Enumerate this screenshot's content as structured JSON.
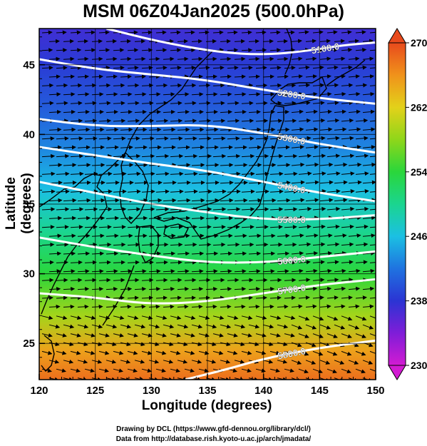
{
  "title": "MSM 06Z04Jan2025 (500.0hPa)",
  "xlabel": "Longitude (degrees)",
  "ylabel": "Latitude  (degrees)",
  "credits": {
    "line1": "Drawing by DCL (https://www.gfd-dennou.org/library/dcl/)",
    "line2": "Data from http://database.rish.kyoto-u.ac.jp/arch/jmadata/"
  },
  "chart_data": {
    "type": "map",
    "xlim": [
      120,
      150
    ],
    "ylim": [
      22.4,
      47.6
    ],
    "xticks": [
      120,
      125,
      130,
      135,
      140,
      145,
      150
    ],
    "yticks": [
      25,
      30,
      35,
      40,
      45
    ],
    "colorbar": {
      "min": 230,
      "max": 270,
      "ticks": [
        230,
        238,
        246,
        254,
        262,
        270
      ],
      "colors": [
        "#d21bd2",
        "#7f1dd8",
        "#2b34d3",
        "#1f73e0",
        "#1bc0e3",
        "#1bd58f",
        "#2ad63b",
        "#8fd61a",
        "#e3d11a",
        "#f0921b",
        "#e84a1c"
      ]
    },
    "temperature_field": [
      {
        "lat": 47.6,
        "temp": 237
      },
      {
        "lat": 45,
        "temp": 238.5
      },
      {
        "lat": 42,
        "temp": 240.5
      },
      {
        "lat": 39,
        "temp": 243
      },
      {
        "lat": 36,
        "temp": 246
      },
      {
        "lat": 33,
        "temp": 250
      },
      {
        "lat": 30,
        "temp": 254
      },
      {
        "lat": 27,
        "temp": 259
      },
      {
        "lat": 24.5,
        "temp": 265
      },
      {
        "lat": 22.4,
        "temp": 268
      }
    ],
    "contours": [
      {
        "label": "5100.0",
        "points": [
          [
            126,
            47.6
          ],
          [
            131,
            46.6
          ],
          [
            136,
            45.9
          ],
          [
            140,
            45.7
          ],
          [
            144,
            46.0
          ],
          [
            147,
            46.4
          ],
          [
            150,
            46.6
          ]
        ]
      },
      {
        "label": "5200.0",
        "points": [
          [
            120,
            45.4
          ],
          [
            125,
            44.7
          ],
          [
            130,
            44.3
          ],
          [
            135,
            43.9
          ],
          [
            140,
            43.2
          ],
          [
            145,
            42.6
          ],
          [
            150,
            42.2
          ]
        ]
      },
      {
        "label": "5300.0",
        "points": [
          [
            120,
            41.1
          ],
          [
            125,
            40.6
          ],
          [
            130,
            40.6
          ],
          [
            135,
            40.7
          ],
          [
            140,
            40.1
          ],
          [
            145,
            39.3
          ],
          [
            150,
            38.7
          ]
        ]
      },
      {
        "label": "5400.0",
        "points": [
          [
            120,
            39.1
          ],
          [
            125,
            38.5
          ],
          [
            130,
            37.9
          ],
          [
            135,
            37.4
          ],
          [
            140,
            36.6
          ],
          [
            145,
            35.8
          ],
          [
            150,
            35.2
          ]
        ]
      },
      {
        "label": "5500.0",
        "points": [
          [
            120,
            36.6
          ],
          [
            125,
            35.8
          ],
          [
            130,
            35.0
          ],
          [
            135,
            34.4
          ],
          [
            140,
            33.9
          ],
          [
            145,
            33.9
          ],
          [
            150,
            34.2
          ]
        ]
      },
      {
        "label": "5600.0",
        "points": [
          [
            120,
            32.6
          ],
          [
            125,
            31.9
          ],
          [
            130,
            31.3
          ],
          [
            135,
            30.8
          ],
          [
            140,
            30.8
          ],
          [
            145,
            31.2
          ],
          [
            150,
            31.6
          ]
        ]
      },
      {
        "label": "5700.0",
        "points": [
          [
            120,
            28.6
          ],
          [
            125,
            28.3
          ],
          [
            130,
            27.8
          ],
          [
            135,
            28.0
          ],
          [
            140,
            28.6
          ],
          [
            145,
            29.2
          ],
          [
            150,
            29.6
          ]
        ]
      },
      {
        "label": "5800.0",
        "points": [
          [
            133,
            22.4
          ],
          [
            137,
            23.2
          ],
          [
            140,
            23.9
          ],
          [
            145,
            24.7
          ],
          [
            150,
            25.2
          ]
        ]
      }
    ]
  }
}
